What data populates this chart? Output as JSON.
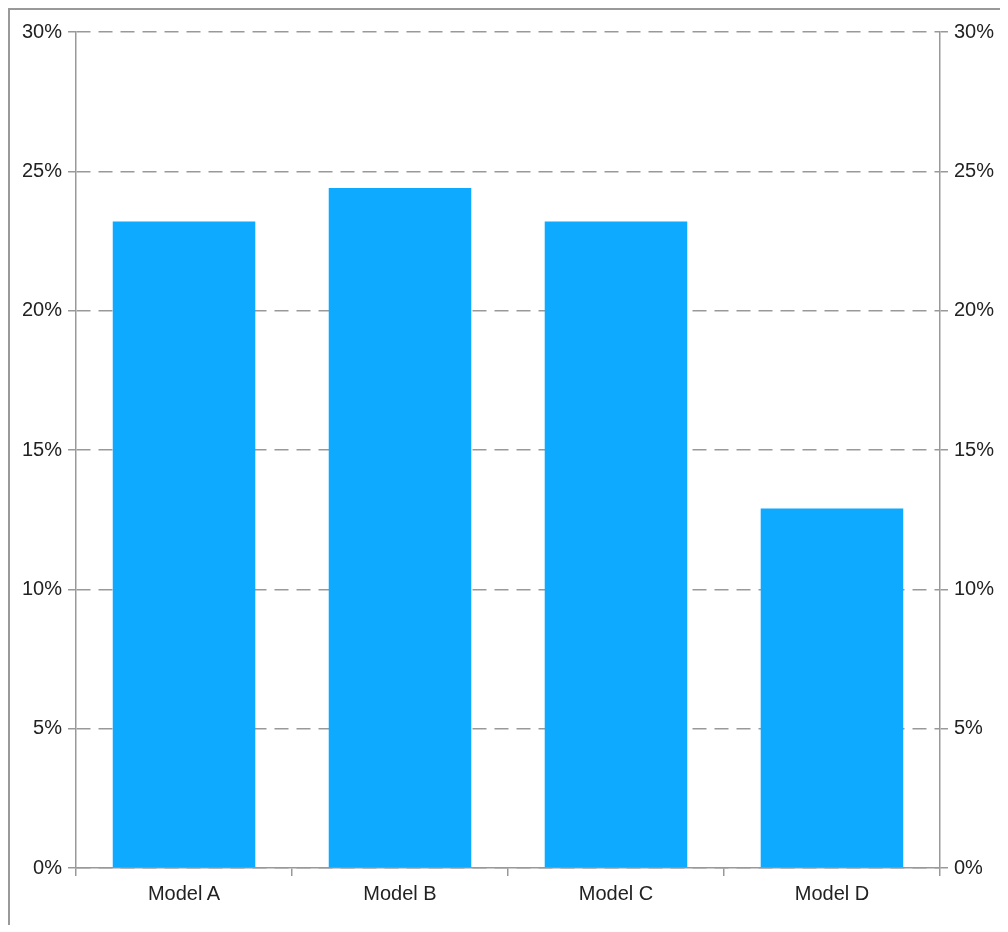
{
  "chart_data": {
    "type": "bar",
    "categories": [
      "Model A",
      "Model B",
      "Model C",
      "Model D"
    ],
    "values": [
      23.2,
      24.4,
      23.2,
      12.9
    ],
    "color": "#0daaff",
    "ylim": [
      0,
      30
    ],
    "yticks": [
      {
        "value": 0,
        "label": "0%"
      },
      {
        "value": 5,
        "label": "5%"
      },
      {
        "value": 10,
        "label": "10%"
      },
      {
        "value": 15,
        "label": "15%"
      },
      {
        "value": 20,
        "label": "20%"
      },
      {
        "value": 25,
        "label": "25%"
      },
      {
        "value": 30,
        "label": "30%"
      }
    ],
    "y2lim": [
      0,
      30
    ],
    "y2ticks": [
      {
        "value": 0,
        "label": "0%"
      },
      {
        "value": 5,
        "label": "5%"
      },
      {
        "value": 10,
        "label": "10%"
      },
      {
        "value": 15,
        "label": "15%"
      },
      {
        "value": 20,
        "label": "20%"
      },
      {
        "value": 25,
        "label": "25%"
      },
      {
        "value": 30,
        "label": "30%"
      }
    ],
    "grid": "y",
    "line_style": "dashed",
    "legend": false
  }
}
